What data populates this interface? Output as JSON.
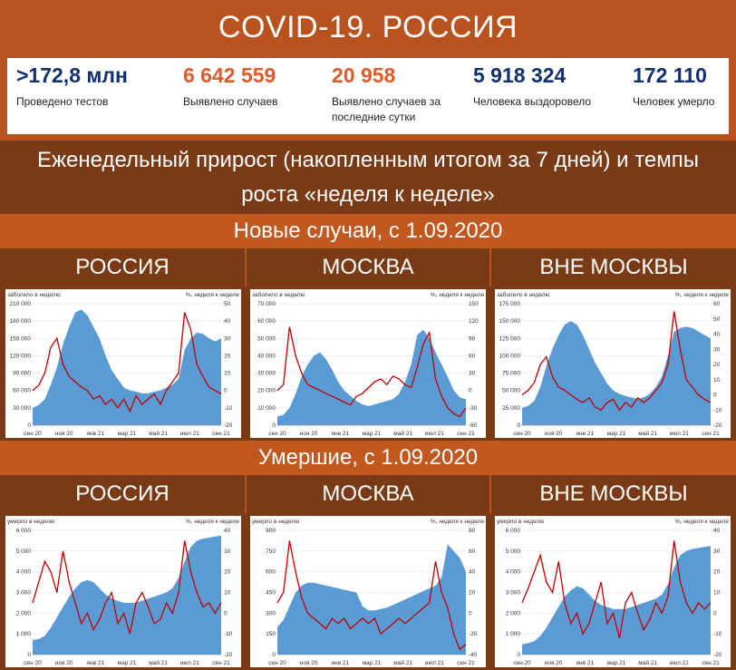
{
  "header": {
    "title": "COVID-19. РОССИЯ"
  },
  "stats": [
    {
      "value": ">172,8 млн",
      "label": "Проведено тестов",
      "color": "#10306e"
    },
    {
      "value": "6 642 559",
      "label": "Выявлено случаев",
      "color": "#e05a2b"
    },
    {
      "value": "20 958",
      "label": "Выявлено случаев за последние сутки",
      "color": "#e05a2b"
    },
    {
      "value": "5 918 324",
      "label": "Человека выздоровело",
      "color": "#10306e"
    },
    {
      "value": "172 110",
      "label": "Человек умерло",
      "color": "#10306e"
    }
  ],
  "subtitle": "Еженедельный прирост (накопленным итогом за 7 дней) и темпы роста «неделя к неделе»",
  "sections": {
    "cases": "Новые случаи, с 1.09.2020",
    "deaths": "Умершие, с 1.09.2020"
  },
  "regions": [
    "РОССИЯ",
    "МОСКВА",
    "ВНЕ МОСКВЫ"
  ],
  "colors": {
    "area": "#5b9bd5",
    "line": "#c00000",
    "band": "#b8521e",
    "dark": "#7b3a16"
  },
  "x_ticks": [
    "сен 20",
    "ноя 20",
    "янв 21",
    "мар 21",
    "май 21",
    "июл 21",
    "сен 21"
  ],
  "chart_data": [
    {
      "type": "area+line",
      "title": "РОССИЯ — новые случаи",
      "left_label": "заболело в неделю",
      "right_label": "%, неделя к неделе",
      "ylim_left": [
        0,
        210000
      ],
      "left_ticks": [
        "0",
        "30 000",
        "60 000",
        "90 000",
        "120 000",
        "150 000",
        "180 000",
        "210 000"
      ],
      "ylim_right": [
        -20,
        50
      ],
      "right_ticks": [
        "-20",
        "-10",
        "0",
        "10",
        "20",
        "30",
        "40",
        "50"
      ],
      "area_values": [
        30000,
        35000,
        45000,
        70000,
        100000,
        140000,
        170000,
        195000,
        200000,
        190000,
        170000,
        150000,
        120000,
        95000,
        80000,
        65000,
        60000,
        58000,
        55000,
        55000,
        58000,
        60000,
        65000,
        70000,
        80000,
        130000,
        150000,
        160000,
        158000,
        150000,
        145000,
        150000
      ],
      "line_values": [
        0,
        3,
        10,
        25,
        30,
        15,
        8,
        5,
        2,
        0,
        -5,
        -3,
        -8,
        -5,
        -10,
        -5,
        -12,
        -3,
        -8,
        -5,
        -2,
        -8,
        0,
        5,
        10,
        45,
        35,
        15,
        8,
        2,
        0,
        -2
      ]
    },
    {
      "type": "area+line",
      "title": "МОСКВА — новые случаи",
      "left_label": "заболело в неделю",
      "right_label": "%, неделя к неделе",
      "ylim_left": [
        0,
        70000
      ],
      "left_ticks": [
        "0",
        "10 000",
        "20 000",
        "30 000",
        "40 000",
        "50 000",
        "60 000",
        "70 000"
      ],
      "ylim_right": [
        -60,
        150
      ],
      "right_ticks": [
        "-60",
        "-30",
        "0",
        "30",
        "60",
        "90",
        "120",
        "150"
      ],
      "area_values": [
        5000,
        6000,
        10000,
        18000,
        28000,
        35000,
        40000,
        42000,
        38000,
        32000,
        25000,
        20000,
        17000,
        14000,
        12000,
        11000,
        12000,
        13000,
        14000,
        15000,
        18000,
        25000,
        35000,
        52000,
        55000,
        50000,
        42000,
        35000,
        28000,
        20000,
        16000,
        15000
      ],
      "line_values": [
        0,
        10,
        110,
        60,
        30,
        10,
        5,
        0,
        -5,
        -10,
        -15,
        -20,
        -25,
        -10,
        -5,
        5,
        15,
        20,
        10,
        25,
        20,
        10,
        5,
        40,
        80,
        100,
        20,
        -10,
        -30,
        -40,
        -45,
        -30
      ]
    },
    {
      "type": "area+line",
      "title": "ВНЕ МОСКВЫ — новые случаи",
      "left_label": "заболело в неделю",
      "right_label": "%, неделя к неделе",
      "ylim_left": [
        0,
        175000
      ],
      "left_ticks": [
        "0",
        "25 000",
        "50 000",
        "75 000",
        "100 000",
        "125 000",
        "150 000",
        "175 000"
      ],
      "ylim_right": [
        -20,
        60
      ],
      "right_ticks": [
        "-20",
        "-10",
        "0",
        "10",
        "20",
        "30",
        "40",
        "50",
        "60"
      ],
      "area_values": [
        25000,
        28000,
        35000,
        55000,
        85000,
        110000,
        130000,
        145000,
        150000,
        145000,
        130000,
        110000,
        90000,
        75000,
        60000,
        50000,
        45000,
        42000,
        40000,
        38000,
        40000,
        45000,
        55000,
        70000,
        100000,
        135000,
        140000,
        142000,
        140000,
        135000,
        130000,
        125000
      ],
      "line_values": [
        0,
        3,
        8,
        20,
        25,
        12,
        5,
        3,
        0,
        -3,
        -5,
        -2,
        -8,
        -10,
        -5,
        -3,
        -10,
        -5,
        -8,
        -2,
        -5,
        -2,
        3,
        8,
        20,
        55,
        30,
        10,
        5,
        0,
        -3,
        -5
      ]
    },
    {
      "type": "area+line",
      "title": "РОССИЯ — умершие",
      "left_label": "умерло в неделю",
      "right_label": "%, неделя к неделе",
      "ylim_left": [
        0,
        6000
      ],
      "left_ticks": [
        "0",
        "1 000",
        "2 000",
        "3 000",
        "4 000",
        "5 000",
        "6 000"
      ],
      "ylim_right": [
        -20,
        40
      ],
      "right_ticks": [
        "-20",
        "-10",
        "0",
        "10",
        "20",
        "30",
        "40"
      ],
      "area_values": [
        700,
        750,
        900,
        1300,
        1800,
        2300,
        2800,
        3200,
        3500,
        3600,
        3500,
        3200,
        2900,
        2700,
        2600,
        2500,
        2500,
        2500,
        2600,
        2700,
        2800,
        2900,
        3000,
        3200,
        3700,
        4500,
        5200,
        5500,
        5600,
        5650,
        5700,
        5750
      ],
      "line_values": [
        5,
        15,
        25,
        20,
        10,
        30,
        15,
        5,
        -5,
        0,
        -8,
        -3,
        5,
        10,
        -5,
        0,
        -10,
        5,
        10,
        3,
        -5,
        -3,
        5,
        0,
        10,
        35,
        20,
        10,
        3,
        5,
        0,
        5
      ]
    },
    {
      "type": "area+line",
      "title": "МОСКВА — умершие",
      "left_label": "умерло в неделю",
      "right_label": "%, неделя к неделе",
      "ylim_left": [
        0,
        900
      ],
      "left_ticks": [
        "0",
        "150",
        "300",
        "450",
        "600",
        "750",
        "900"
      ],
      "ylim_right": [
        -40,
        80
      ],
      "right_ticks": [
        "-40",
        "-20",
        "0",
        "20",
        "40",
        "60",
        "80"
      ],
      "area_values": [
        200,
        250,
        350,
        450,
        500,
        520,
        520,
        510,
        500,
        490,
        480,
        470,
        460,
        450,
        350,
        320,
        320,
        330,
        340,
        360,
        380,
        400,
        420,
        440,
        460,
        480,
        500,
        560,
        800,
        750,
        700,
        600
      ],
      "line_values": [
        10,
        20,
        70,
        40,
        15,
        0,
        -5,
        -10,
        -15,
        -5,
        -10,
        -5,
        -15,
        -10,
        -5,
        -10,
        -5,
        -20,
        -15,
        -10,
        -5,
        -10,
        -5,
        0,
        5,
        10,
        50,
        20,
        5,
        -20,
        -35,
        -30
      ]
    },
    {
      "type": "area+line",
      "title": "ВНЕ МОСКВЫ — умершие",
      "left_label": "умерло в неделю",
      "right_label": "%, неделя к неделе",
      "ylim_left": [
        0,
        6000
      ],
      "left_ticks": [
        "0",
        "1 000",
        "2 000",
        "3 000",
        "4 000",
        "5 000",
        "6 000"
      ],
      "ylim_right": [
        -20,
        40
      ],
      "right_ticks": [
        "-20",
        "-10",
        "0",
        "10",
        "20",
        "30",
        "40"
      ],
      "area_values": [
        500,
        550,
        650,
        900,
        1300,
        1800,
        2300,
        2800,
        3100,
        3300,
        3200,
        2900,
        2600,
        2400,
        2300,
        2200,
        2200,
        2200,
        2300,
        2400,
        2500,
        2600,
        2700,
        2900,
        3400,
        4200,
        4800,
        5000,
        5100,
        5150,
        5200,
        5250
      ],
      "line_values": [
        5,
        12,
        20,
        28,
        15,
        10,
        25,
        5,
        -5,
        0,
        -10,
        -5,
        5,
        15,
        -5,
        0,
        -12,
        5,
        10,
        0,
        -8,
        -3,
        5,
        0,
        8,
        35,
        15,
        5,
        0,
        5,
        2,
        5
      ]
    }
  ]
}
